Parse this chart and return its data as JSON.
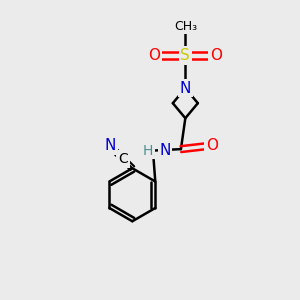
{
  "bg_color": "#ebebeb",
  "atom_colors": {
    "C": "#000000",
    "N": "#0000cc",
    "O": "#ff0000",
    "S": "#cccc00",
    "H": "#4a9090"
  },
  "bond_color": "#000000",
  "bond_width": 1.8,
  "figsize": [
    3.0,
    3.0
  ],
  "dpi": 100
}
